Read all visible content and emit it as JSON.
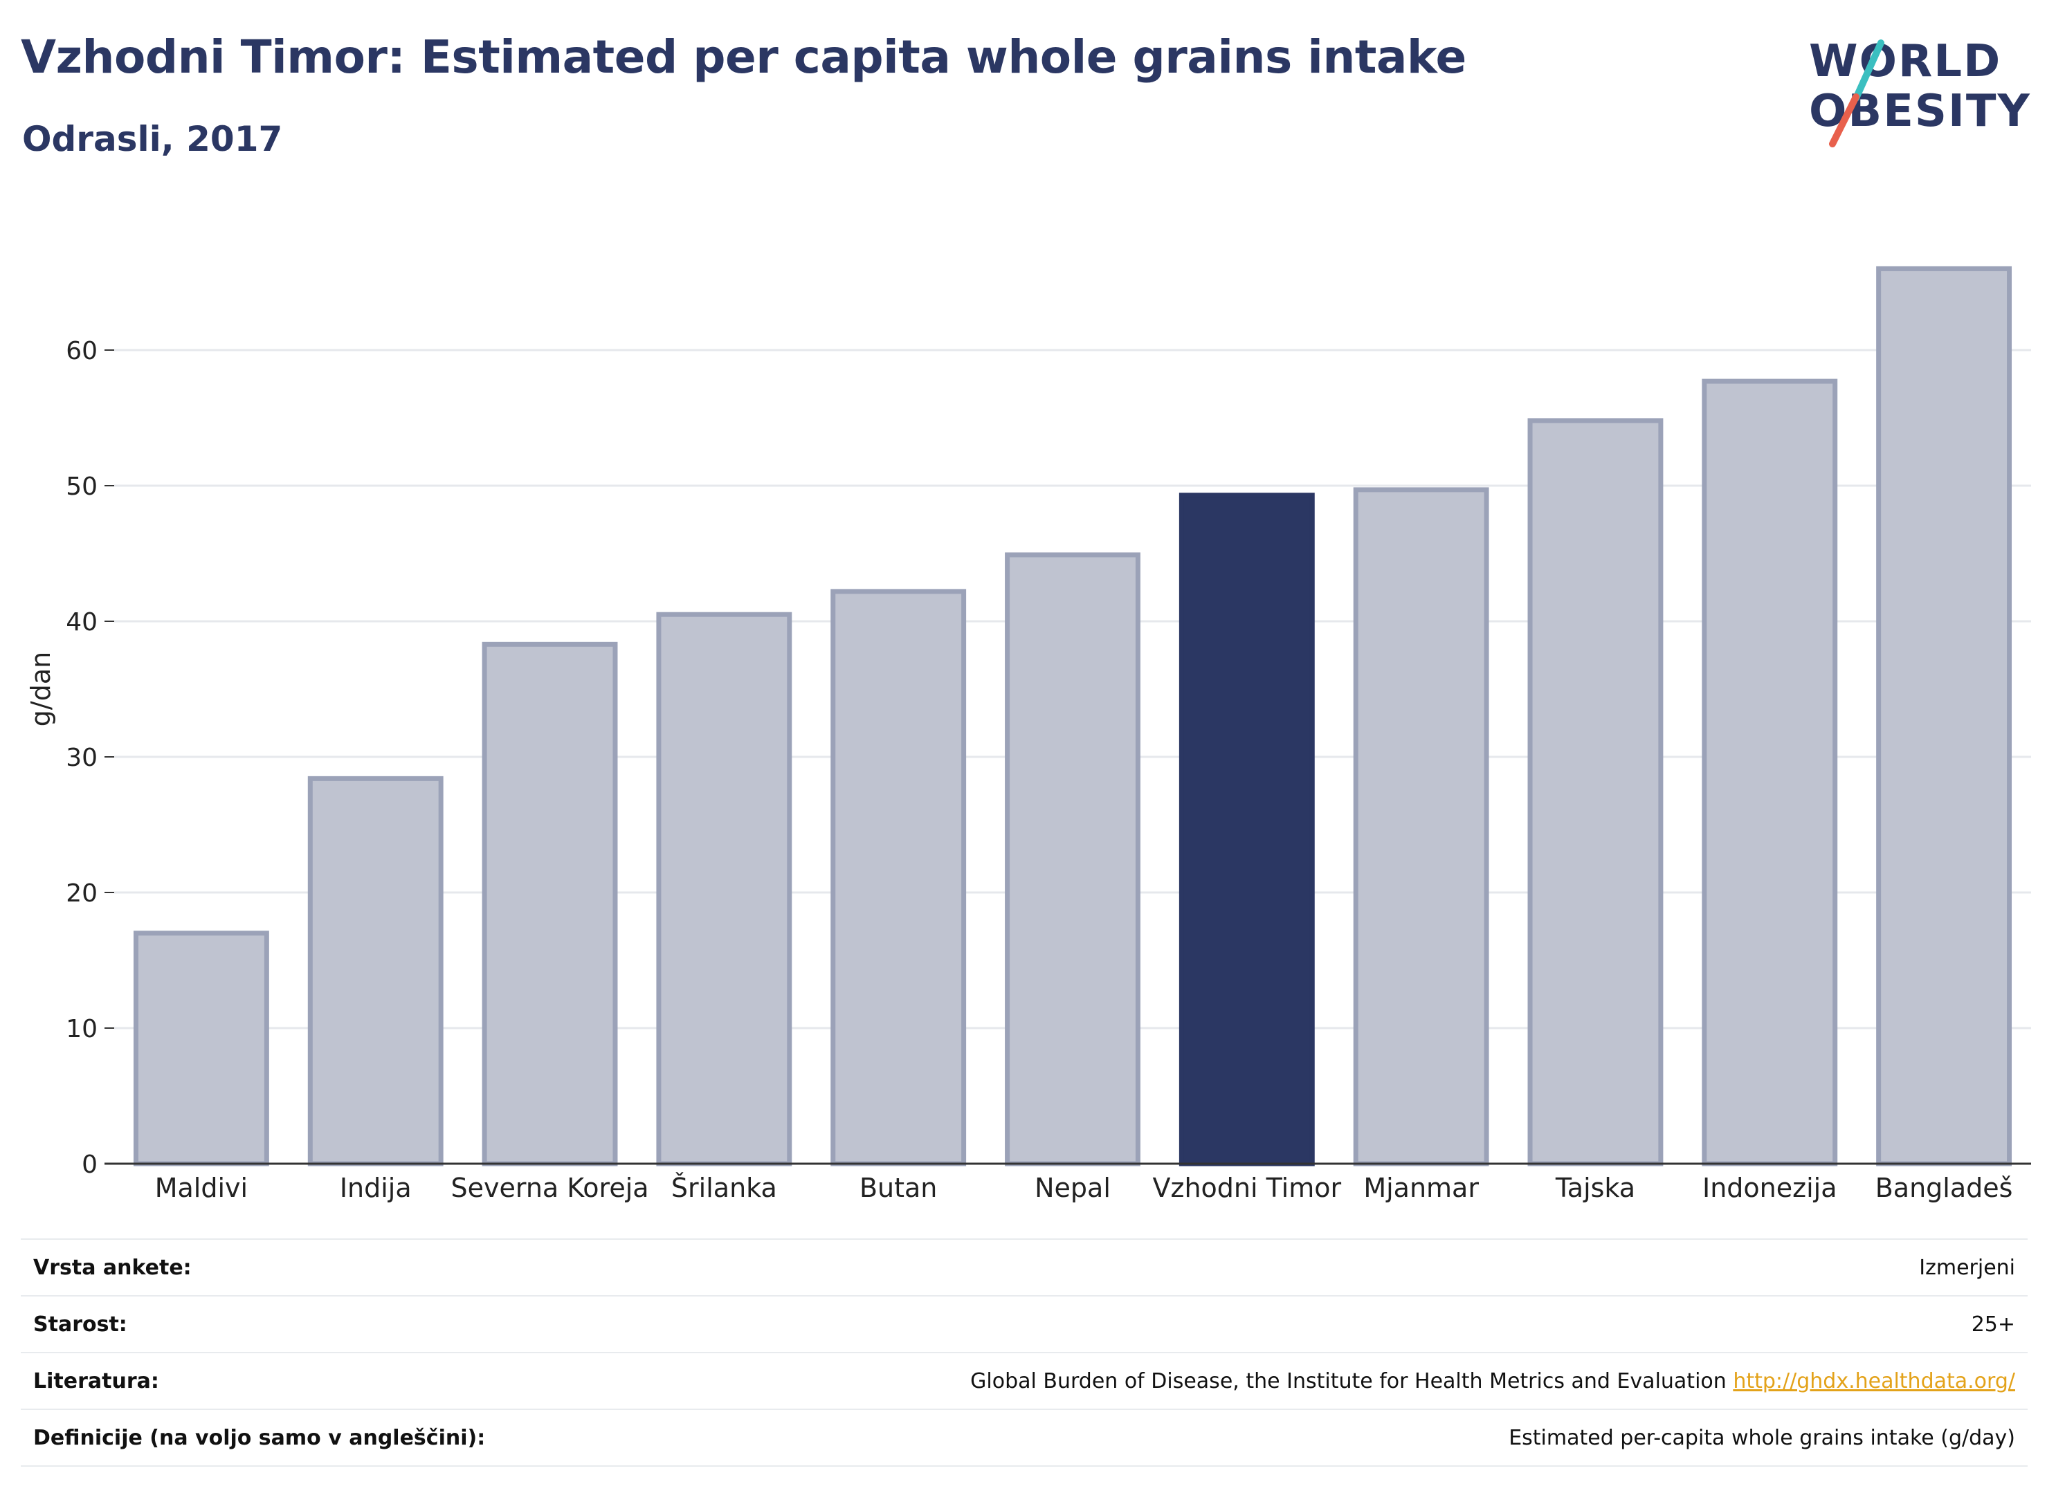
{
  "header": {
    "title": "Vzhodni Timor: Estimated per capita whole grains intake",
    "subtitle": "Odrasli, 2017"
  },
  "logo": {
    "line1": "WORLD",
    "line2": "OBESITY",
    "slash_colors": [
      "#3bbfc0",
      "#e8604c"
    ],
    "text_color": "#2b3763"
  },
  "chart_data": {
    "type": "bar",
    "categories": [
      "Maldivi",
      "Indija",
      "Severna Koreja",
      "Šrilanka",
      "Butan",
      "Nepal",
      "Vzhodni Timor",
      "Mjanmar",
      "Tajska",
      "Indonezija",
      "Bangladeš"
    ],
    "values": [
      17,
      28.4,
      38.3,
      40.5,
      42.2,
      44.9,
      49.3,
      49.7,
      54.8,
      57.7,
      66
    ],
    "highlight": "Vzhodni Timor",
    "ylabel": "g/dan",
    "xlabel": "",
    "ylim": [
      0,
      70
    ],
    "yticks": [
      0,
      10,
      20,
      30,
      40,
      50,
      60
    ],
    "grid": true,
    "colors": {
      "bar": "#bfc3d0",
      "bar_border": "#9ba2b8",
      "highlight": "#2b3763"
    }
  },
  "info": {
    "rows": [
      {
        "key": "Vrsta ankete:",
        "value": "Izmerjeni"
      },
      {
        "key": "Starost:",
        "value": "25+"
      },
      {
        "key": "Literatura:",
        "value": "Global Burden of Disease, the Institute for Health Metrics and Evaluation ",
        "link": "http://ghdx.healthdata.org/"
      },
      {
        "key": "Definicije (na voljo samo v angleščini):",
        "value": "Estimated per-capita whole grains intake (g/day)"
      }
    ]
  }
}
